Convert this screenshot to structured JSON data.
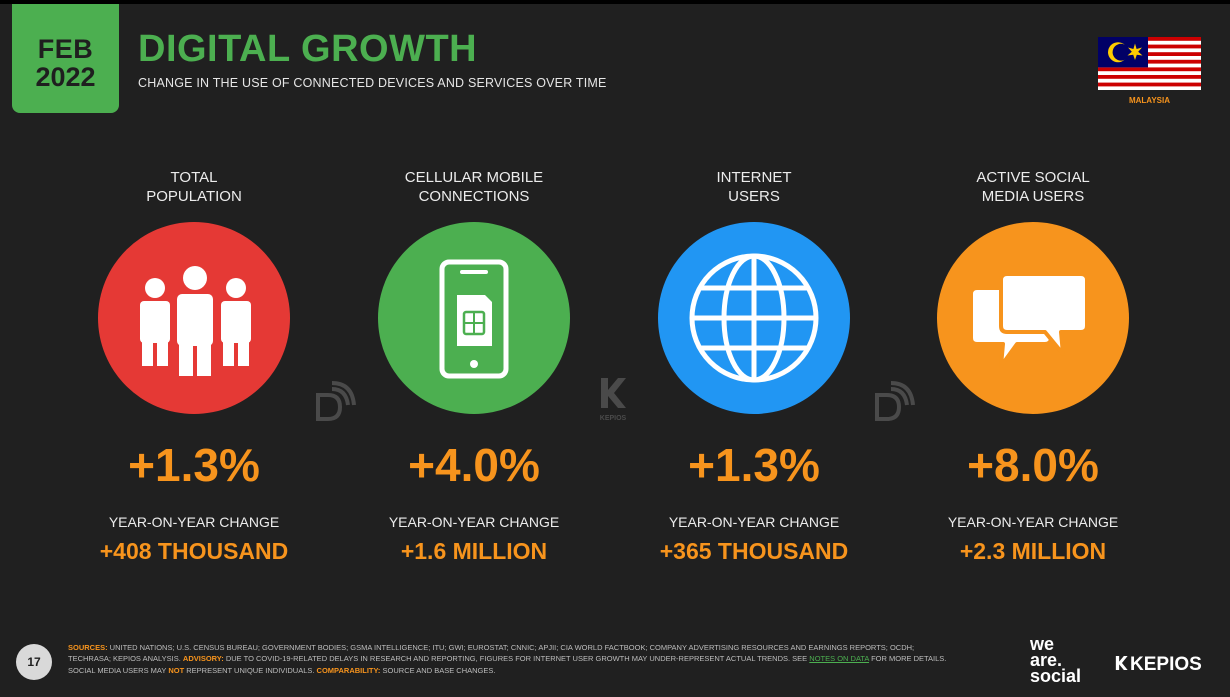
{
  "header": {
    "date_month": "FEB",
    "date_year": "2022",
    "title": "DIGITAL GROWTH",
    "subtitle": "CHANGE IN THE USE OF CONNECTED DEVICES AND SERVICES OVER TIME",
    "country": "MALAYSIA"
  },
  "colors": {
    "background": "#202020",
    "accent_green": "#4caf50",
    "accent_orange": "#f7941d",
    "population_red": "#e53935",
    "mobile_green": "#4caf50",
    "internet_blue": "#2196f3",
    "social_orange": "#f7941d"
  },
  "stats": [
    {
      "label_line1": "TOTAL",
      "label_line2": "POPULATION",
      "icon": "people-icon",
      "percent": "+1.3%",
      "yoy_label": "YEAR-ON-YEAR CHANGE",
      "absolute": "+408 THOUSAND"
    },
    {
      "label_line1": "CELLULAR MOBILE",
      "label_line2": "CONNECTIONS",
      "icon": "mobile-sim-icon",
      "percent": "+4.0%",
      "yoy_label": "YEAR-ON-YEAR CHANGE",
      "absolute": "+1.6 MILLION"
    },
    {
      "label_line1": "INTERNET",
      "label_line2": "USERS",
      "icon": "globe-icon",
      "percent": "+1.3%",
      "yoy_label": "YEAR-ON-YEAR CHANGE",
      "absolute": "+365 THOUSAND"
    },
    {
      "label_line1": "ACTIVE SOCIAL",
      "label_line2": "MEDIA USERS",
      "icon": "speech-bubbles-icon",
      "percent": "+8.0%",
      "yoy_label": "YEAR-ON-YEAR CHANGE",
      "absolute": "+2.3 MILLION"
    }
  ],
  "watermark": {
    "kepios_text": "KEPIOS"
  },
  "footer": {
    "page_number": "17",
    "sources_key": "SOURCES:",
    "sources_text": " UNITED NATIONS; U.S. CENSUS BUREAU; GOVERNMENT BODIES; GSMA INTELLIGENCE; ITU; GWI; EUROSTAT; CNNIC; APJII; CIA WORLD FACTBOOK; COMPANY ADVERTISING RESOURCES AND EARNINGS REPORTS; OCDH; TECHRASA; KEPIOS ANALYSIS. ",
    "advisory_key": "ADVISORY:",
    "advisory_text": " DUE TO COVID-19-RELATED DELAYS IN RESEARCH AND REPORTING, FIGURES FOR INTERNET USER GROWTH MAY UNDER-REPRESENT ACTUAL TRENDS. SEE ",
    "notes_link": "NOTES ON DATA",
    "advisory_text2": " FOR MORE DETAILS. SOCIAL MEDIA USERS MAY ",
    "not_word": "NOT",
    "advisory_text3": " REPRESENT UNIQUE INDIVIDUALS. ",
    "comparability_key": "COMPARABILITY:",
    "comparability_text": " SOURCE AND BASE CHANGES."
  },
  "brands": {
    "we": "we",
    "are": "are.",
    "social": "social",
    "kepios": "KEPIOS"
  }
}
